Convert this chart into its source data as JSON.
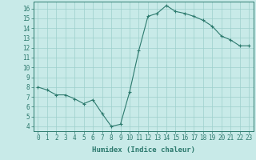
{
  "x": [
    0,
    1,
    2,
    3,
    4,
    5,
    6,
    7,
    8,
    9,
    10,
    11,
    12,
    13,
    14,
    15,
    16,
    17,
    18,
    19,
    20,
    21,
    22,
    23
  ],
  "y": [
    8.0,
    7.7,
    7.2,
    7.2,
    6.8,
    6.3,
    6.7,
    5.3,
    4.0,
    4.2,
    7.5,
    11.7,
    15.2,
    15.5,
    16.3,
    15.7,
    15.5,
    15.2,
    14.8,
    14.2,
    13.2,
    12.8,
    12.2,
    12.2
  ],
  "line_color": "#2d7a6e",
  "marker": "+",
  "marker_size": 3,
  "marker_linewidth": 0.8,
  "bg_color": "#c8eae8",
  "grid_color": "#9ecfcc",
  "xlabel": "Humidex (Indice chaleur)",
  "xlim": [
    -0.5,
    23.5
  ],
  "ylim": [
    3.5,
    16.7
  ],
  "xtick_labels": [
    "0",
    "1",
    "2",
    "3",
    "4",
    "5",
    "6",
    "7",
    "8",
    "9",
    "10",
    "11",
    "12",
    "13",
    "14",
    "15",
    "16",
    "17",
    "18",
    "19",
    "20",
    "21",
    "22",
    "23"
  ],
  "ytick_values": [
    4,
    5,
    6,
    7,
    8,
    9,
    10,
    11,
    12,
    13,
    14,
    15,
    16
  ],
  "xlabel_fontsize": 6.5,
  "tick_fontsize": 5.5,
  "axis_color": "#2d7a6e",
  "line_width": 0.8
}
